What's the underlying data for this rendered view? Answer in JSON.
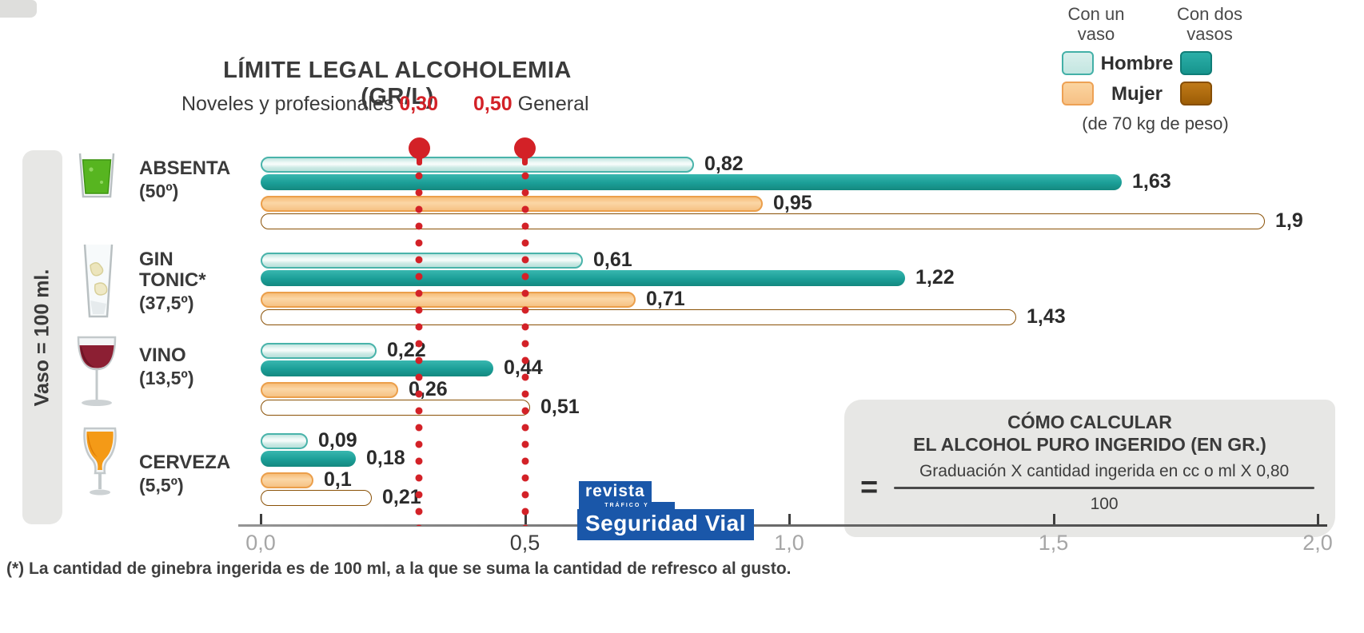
{
  "header": {
    "title": "LÍMITE LEGAL ALCOHOLEMIA (GR/L)",
    "novice_label": "Noveles y profesionales",
    "novice_value": "0,30",
    "general_value": "0,50",
    "general_label": "General"
  },
  "legend": {
    "one_glass": "Con un vaso",
    "two_glasses": "Con dos vasos",
    "male": "Hombre",
    "female": "Mujer",
    "weight_note": "(de 70 kg de peso)"
  },
  "left_note": "Vaso = 100 ml.",
  "drinks": [
    {
      "id": "absenta",
      "name": "ABSENTA",
      "degrees": "(50º)",
      "icon": "absinthe-glass"
    },
    {
      "id": "gin-tonic",
      "name": "GIN TONIC*",
      "degrees": "(37,5º)",
      "icon": "gin-tonic-glass"
    },
    {
      "id": "vino",
      "name": "VINO",
      "degrees": "(13,5º)",
      "icon": "wine-glass"
    },
    {
      "id": "cerveza",
      "name": "CERVEZA",
      "degrees": "(5,5º)",
      "icon": "beer-glass"
    }
  ],
  "chart_data": {
    "type": "bar",
    "orientation": "horizontal",
    "title": "LÍMITE LEGAL ALCOHOLEMIA (GR/L)",
    "unit": "gr/l",
    "categories": [
      "ABSENTA (50º)",
      "GIN TONIC* (37,5º)",
      "VINO (13,5º)",
      "CERVEZA (5,5º)"
    ],
    "series": [
      {
        "key": "hombre-1-vaso",
        "name": "Hombre, con un vaso",
        "color": "#cfeae6",
        "values": [
          0.82,
          0.61,
          0.22,
          0.09
        ],
        "labels": [
          "0,82",
          "0,61",
          "0,22",
          "0,09"
        ]
      },
      {
        "key": "hombre-2-vasos",
        "name": "Hombre, con dos vasos",
        "color": "#1fa59e",
        "values": [
          1.63,
          1.22,
          0.44,
          0.18
        ],
        "labels": [
          "1,63",
          "1,22",
          "0,44",
          "0,18"
        ]
      },
      {
        "key": "mujer-1-vaso",
        "name": "Mujer, con un vaso",
        "color": "#f9c98d",
        "values": [
          0.95,
          0.71,
          0.26,
          0.1
        ],
        "labels": [
          "0,95",
          "0,71",
          "0,26",
          "0,1"
        ]
      },
      {
        "key": "mujer-2-vasos",
        "name": "Mujer, con dos vasos",
        "color": "#b26a10",
        "values": [
          1.9,
          1.43,
          0.51,
          0.21
        ],
        "labels": [
          "1,9",
          "1,43",
          "0,51",
          "0,21"
        ]
      }
    ],
    "xlim": [
      0,
      2.0
    ],
    "x_ticks": [
      {
        "value": 0,
        "label": "0,0",
        "emphasis": false
      },
      {
        "value": 0.5,
        "label": "0,5",
        "emphasis": true
      },
      {
        "value": 1,
        "label": "1,0",
        "emphasis": false
      },
      {
        "value": 1.5,
        "label": "1,5",
        "emphasis": false
      },
      {
        "value": 2,
        "label": "2,0",
        "emphasis": false
      }
    ],
    "reference_lines": [
      {
        "value": 0.3,
        "label": "0,30"
      },
      {
        "value": 0.5,
        "label": "0,50"
      }
    ],
    "grid": false,
    "legend_position": "top-right",
    "colors": {
      "reference_red": "#d32127",
      "hombre_1": "#cfeae6",
      "hombre_2": "#1fa59e",
      "mujer_1": "#f9c98d",
      "mujer_2": "#b26a10"
    }
  },
  "calc": {
    "title_line1": "CÓMO CALCULAR",
    "title_line2": "EL ALCOHOL PURO INGERIDO (EN GR.)",
    "equals": "=",
    "numerator": "Graduación X cantidad ingerida en cc o ml X 0,80",
    "denominator": "100"
  },
  "logo": {
    "revista": "revista",
    "trafico": "TRÁFICO Y",
    "seguridad": "Seguridad Vial",
    "brand_blue": "#1a57a9"
  },
  "footnote": "(*) La cantidad de ginebra ingerida es de 100 ml, a la que se suma la cantidad de refresco al gusto."
}
